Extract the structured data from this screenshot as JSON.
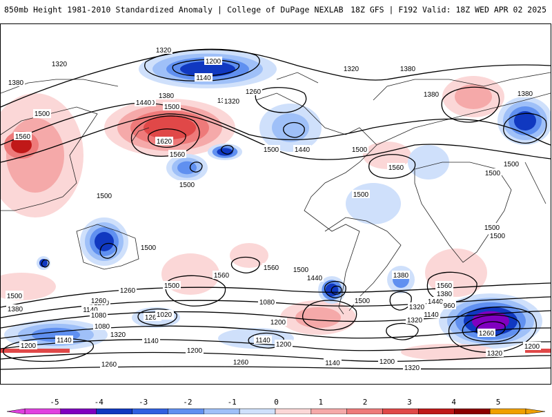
{
  "header": {
    "left_title": "850mb Height 1981-2010 Standardized Anomaly | College of DuPage NEXLAB",
    "right_title": "18Z GFS | F192 Valid: 18Z WED APR 02 2025"
  },
  "colors": {
    "neg5": "#e040e0",
    "neg4": "#8000c0",
    "neg3": "#1038c0",
    "neg2_5": "#3060e0",
    "neg2": "#6090f0",
    "neg1_5": "#9fc0f8",
    "neg1": "#cfe0fb",
    "pos1": "#fbd7d7",
    "pos1_5": "#f5a9a9",
    "pos2": "#ee7a7a",
    "pos2_5": "#e04848",
    "pos3": "#c01818",
    "pos4": "#8b0000",
    "pos5": "#f0a000"
  },
  "colorbar": {
    "ticks": [
      "-5",
      "-4",
      "-3",
      "-2",
      "-1",
      "0",
      "1",
      "2",
      "3",
      "4",
      "5"
    ]
  },
  "contour_labels": [
    "1320",
    "1320",
    "1380",
    "1200",
    "1140",
    "1380",
    "1320",
    "1380",
    "1440",
    "1380",
    "1500",
    "1440",
    "1500",
    "1320",
    "1260",
    "1320",
    "1380",
    "1500",
    "1560",
    "1620",
    "1560",
    "1500",
    "1440",
    "1500",
    "1500",
    "1560",
    "1500",
    "1500",
    "1500",
    "1380",
    "1500",
    "1500",
    "1500",
    "1560",
    "1560",
    "1500",
    "1440",
    "1380",
    "1380",
    "1500",
    "1560",
    "1500",
    "1380",
    "1440",
    "1320",
    "1320",
    "1260",
    "1200",
    "1140",
    "1080",
    "1260",
    "1320",
    "1140",
    "1200",
    "1080",
    "1200",
    "1140",
    "1260",
    "1320",
    "1080",
    "1020",
    "1140",
    "1200",
    "1140",
    "1320",
    "1260",
    "1200",
    "1260",
    "1080",
    "1140",
    "960",
    "1260",
    "1320",
    "1200",
    "1200",
    "1320",
    "1500",
    "1500"
  ]
}
